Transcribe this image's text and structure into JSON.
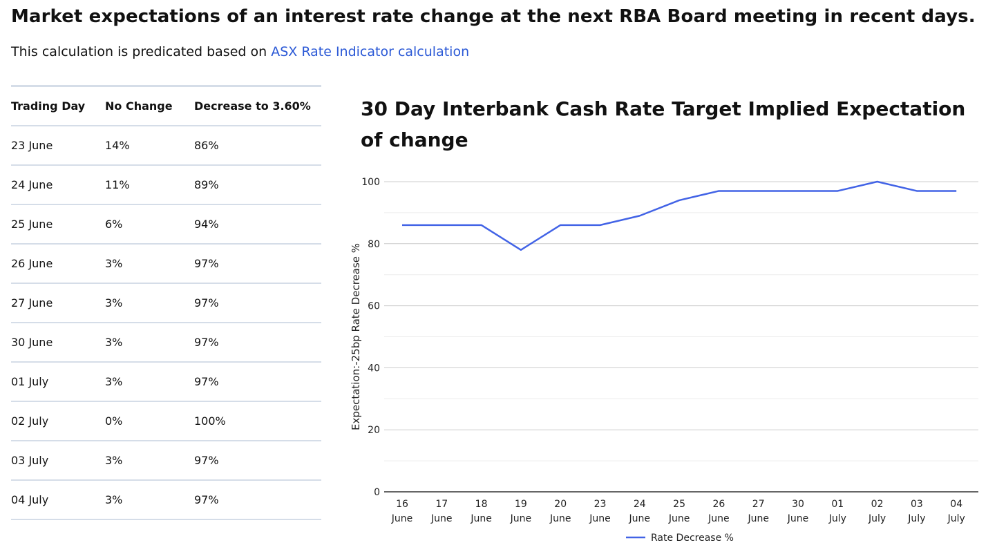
{
  "header": {
    "title": "Market expectations of an interest rate change at the next RBA Board meeting in recent days.",
    "subtitle_prefix": "This calculation is predicated based on ",
    "subtitle_link": "ASX Rate Indicator calculation",
    "link_color": "#2b59d6"
  },
  "table": {
    "headers": [
      "Trading Day",
      "No Change",
      "Decrease to 3.60%"
    ],
    "rows": [
      [
        "23 June",
        "14%",
        "86%"
      ],
      [
        "24 June",
        "11%",
        "89%"
      ],
      [
        "25 June",
        "6%",
        "94%"
      ],
      [
        "26 June",
        "3%",
        "97%"
      ],
      [
        "27 June",
        "3%",
        "97%"
      ],
      [
        "30 June",
        "3%",
        "97%"
      ],
      [
        "01 July",
        "3%",
        "97%"
      ],
      [
        "02 July",
        "0%",
        "100%"
      ],
      [
        "03 July",
        "3%",
        "97%"
      ],
      [
        "04 July",
        "3%",
        "97%"
      ]
    ]
  },
  "chart_data": {
    "type": "line",
    "title": "30 Day Interbank Cash Rate Target Implied Expectation of change",
    "categories": [
      [
        "16",
        "June"
      ],
      [
        "17",
        "June"
      ],
      [
        "18",
        "June"
      ],
      [
        "19",
        "June"
      ],
      [
        "20",
        "June"
      ],
      [
        "23",
        "June"
      ],
      [
        "24",
        "June"
      ],
      [
        "25",
        "June"
      ],
      [
        "26",
        "June"
      ],
      [
        "27",
        "June"
      ],
      [
        "30",
        "June"
      ],
      [
        "01",
        "July"
      ],
      [
        "02",
        "July"
      ],
      [
        "03",
        "July"
      ],
      [
        "04",
        "July"
      ]
    ],
    "series": [
      {
        "name": "Rate Decrease %",
        "color": "#4263e6",
        "values": [
          86,
          86,
          86,
          78,
          86,
          86,
          89,
          94,
          97,
          97,
          97,
          97,
          100,
          97,
          97
        ]
      }
    ],
    "xlabel": "",
    "ylabel": "Expectation:-25bp Rate Decrease %",
    "ylim": [
      0,
      100
    ],
    "yticks": [
      0,
      20,
      40,
      60,
      80,
      100
    ],
    "minor_gridlines": [
      10,
      30,
      50,
      70,
      90
    ],
    "legend_position": "bottom"
  }
}
